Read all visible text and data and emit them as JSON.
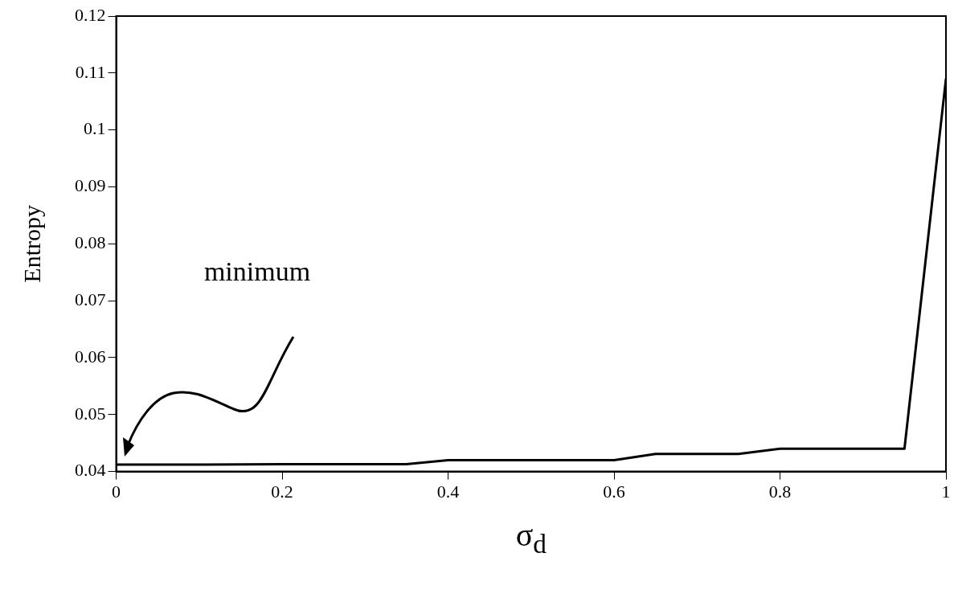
{
  "chart_data": {
    "type": "line",
    "xlabel": "σ$_{d}$",
    "ylabel": "Entropy",
    "x": [
      0,
      0.1,
      0.2,
      0.3,
      0.35,
      0.4,
      0.5,
      0.6,
      0.65,
      0.75,
      0.8,
      0.9,
      0.95,
      1
    ],
    "series": [
      {
        "color": "#000000",
        "values": [
          0.0412,
          0.0412,
          0.0413,
          0.0413,
          0.0413,
          0.042,
          0.042,
          0.042,
          0.0431,
          0.0431,
          0.044,
          0.044,
          0.044,
          0.109
        ]
      }
    ],
    "xlim": [
      0,
      1
    ],
    "xticks": [
      0,
      0.2,
      0.4,
      0.6,
      0.8,
      1
    ],
    "ylim": [
      0.04,
      0.12
    ],
    "yticks": [
      0.04,
      0.05,
      0.06,
      0.07,
      0.08,
      0.09,
      0.1,
      0.11,
      0.12
    ],
    "grid": false,
    "legend": false,
    "marker": "none",
    "line_style": "solid",
    "annotations": [
      "minimum"
    ]
  }
}
